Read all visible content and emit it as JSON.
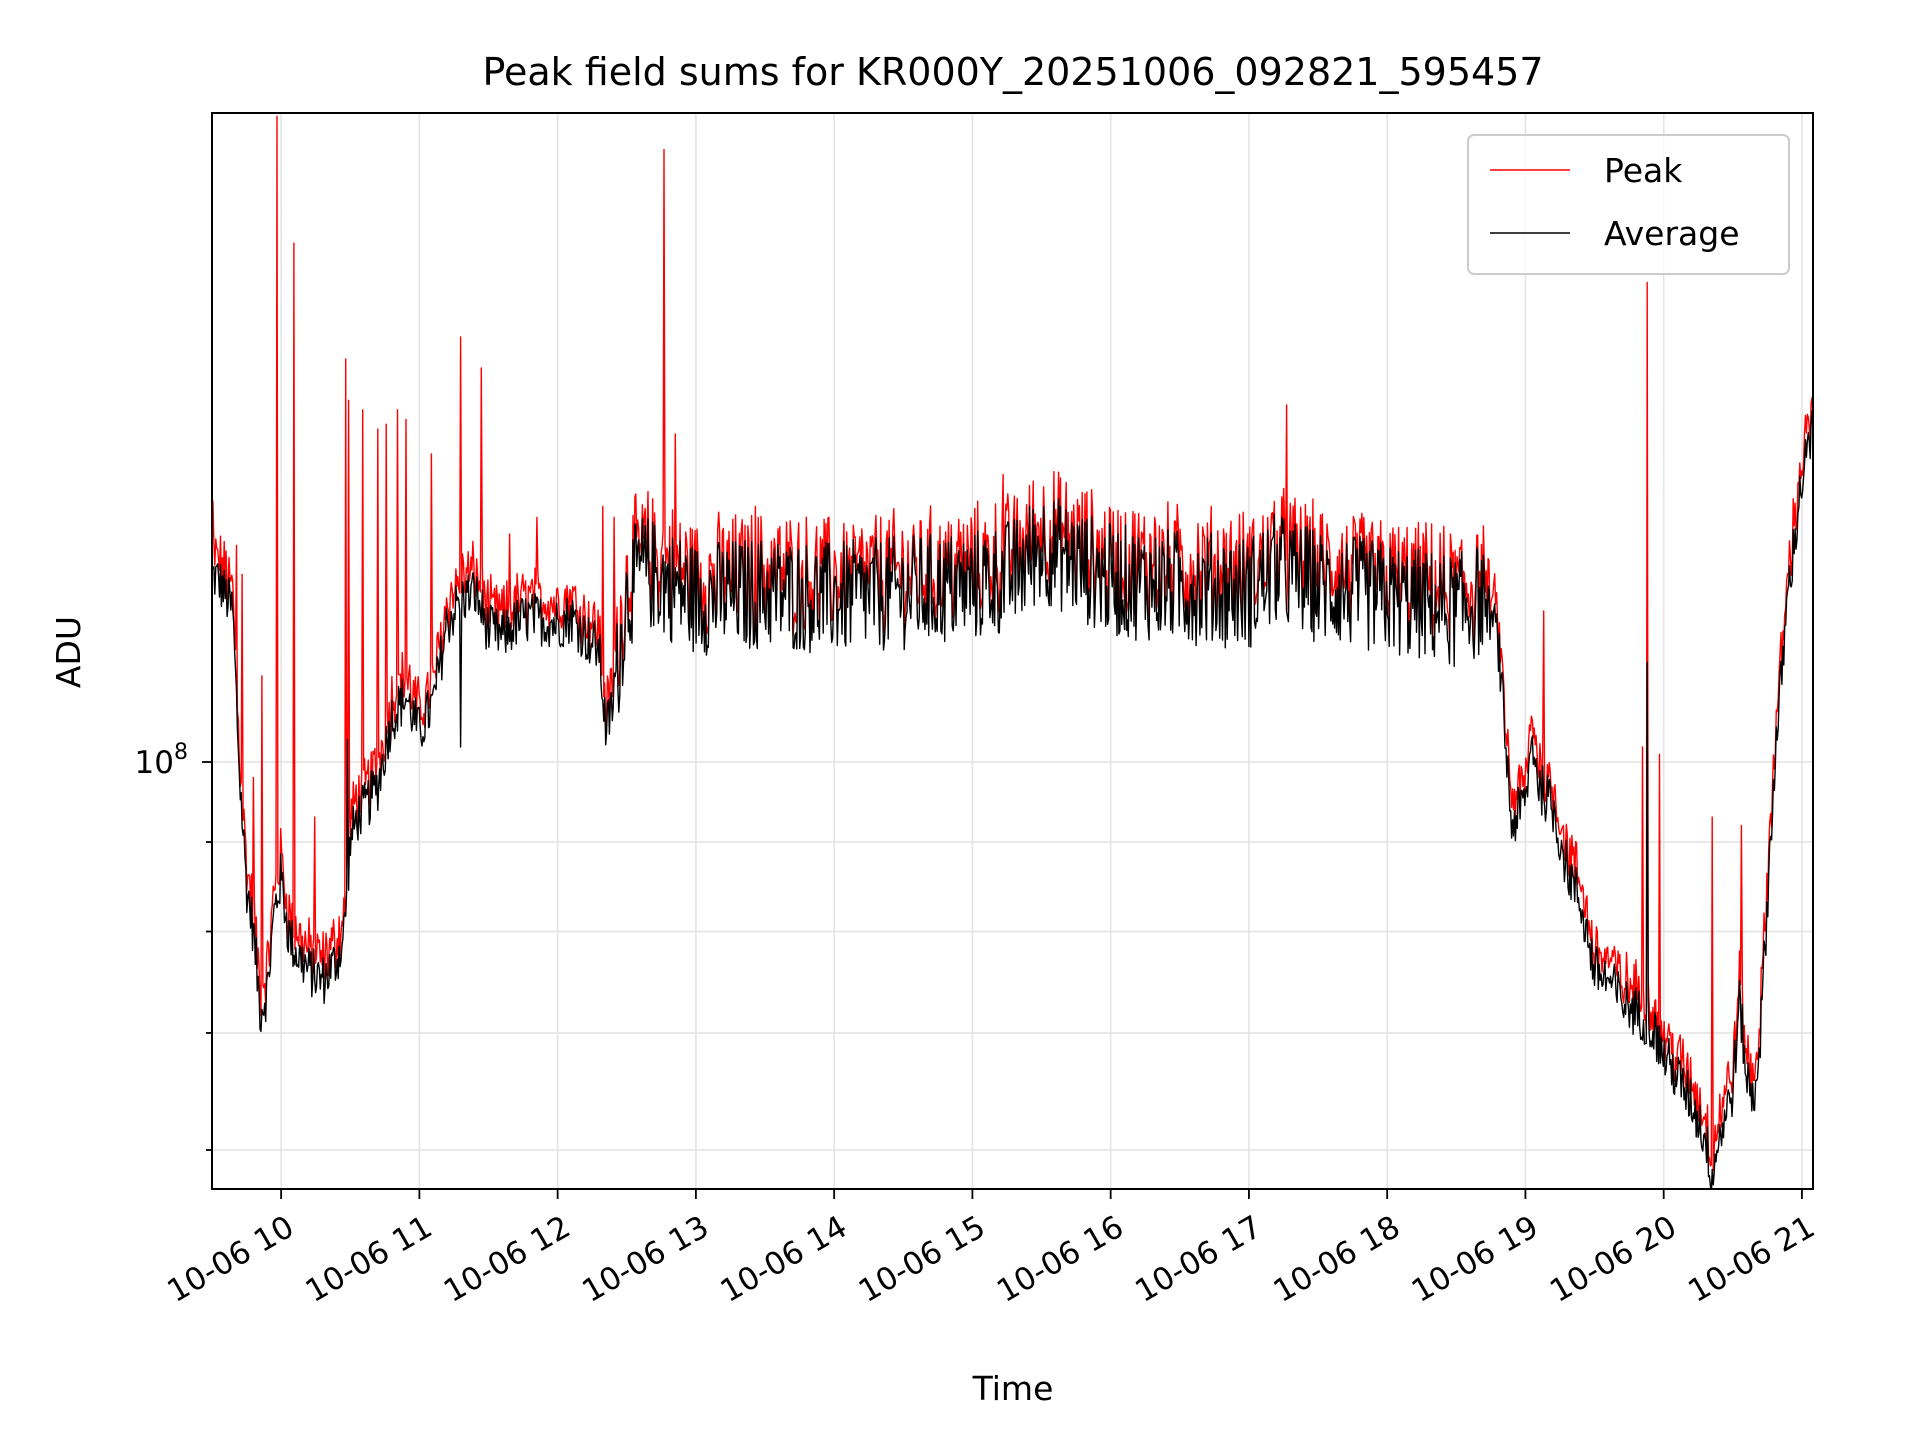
{
  "chart_data": {
    "type": "line",
    "title": "Peak field sums for KR000Y_20251006_092821_595457",
    "xlabel": "Time",
    "ylabel": "ADU",
    "yscale": "log",
    "xlim": [
      9.5,
      21.08
    ],
    "ylim": [
      57000000,
      235000000
    ],
    "grid": true,
    "legend_position": "upper right",
    "x_ticks": [
      {
        "value": 10,
        "label": "10-06 10"
      },
      {
        "value": 11,
        "label": "10-06 11"
      },
      {
        "value": 12,
        "label": "10-06 12"
      },
      {
        "value": 13,
        "label": "10-06 13"
      },
      {
        "value": 14,
        "label": "10-06 14"
      },
      {
        "value": 15,
        "label": "10-06 15"
      },
      {
        "value": 16,
        "label": "10-06 16"
      },
      {
        "value": 17,
        "label": "10-06 17"
      },
      {
        "value": 18,
        "label": "10-06 18"
      },
      {
        "value": 19,
        "label": "10-06 19"
      },
      {
        "value": 20,
        "label": "10-06 20"
      },
      {
        "value": 21,
        "label": "10-06 21"
      }
    ],
    "y_major_ticks": [
      {
        "value": 100000000,
        "base": "10",
        "exp": "8"
      }
    ],
    "y_minor_ticks": [
      60000000,
      70000000,
      80000000,
      90000000
    ],
    "baseline": {
      "x": [
        9.5,
        9.55,
        9.65,
        9.7,
        9.75,
        9.8,
        9.85,
        9.9,
        9.95,
        10.0,
        10.05,
        10.1,
        10.2,
        10.3,
        10.4,
        10.45,
        10.5,
        10.55,
        10.6,
        10.7,
        10.8,
        10.9,
        11.0,
        11.1,
        11.2,
        11.3,
        11.4,
        11.5,
        11.6,
        11.7,
        11.8,
        12.0,
        12.1,
        12.2,
        12.3,
        12.35,
        12.4,
        12.5,
        12.6,
        13.0,
        13.5,
        14.0,
        14.5,
        15.0,
        15.3,
        15.5,
        16.0,
        16.5,
        17.0,
        17.2,
        17.5,
        18.0,
        18.5,
        18.7,
        18.8,
        18.9,
        19.0,
        19.05,
        19.1,
        19.2,
        19.3,
        19.4,
        19.5,
        19.6,
        19.7,
        19.8,
        19.9,
        20.0,
        20.1,
        20.2,
        20.3,
        20.35,
        20.4,
        20.5,
        20.55,
        20.6,
        20.65,
        20.7,
        20.8,
        20.9,
        21.0,
        21.08
      ],
      "y": [
        128000000,
        127000000,
        122000000,
        98000000,
        85000000,
        80000000,
        72000000,
        74000000,
        82000000,
        86000000,
        80000000,
        78000000,
        76000000,
        75000000,
        77000000,
        79000000,
        90000000,
        93000000,
        94000000,
        97000000,
        106000000,
        109000000,
        104000000,
        108000000,
        120000000,
        124000000,
        125000000,
        119000000,
        118000000,
        120000000,
        121000000,
        120000000,
        121000000,
        118000000,
        116000000,
        104000000,
        108000000,
        124000000,
        129000000,
        124000000,
        125000000,
        124000000,
        125000000,
        126000000,
        128000000,
        133000000,
        127000000,
        126000000,
        125000000,
        129000000,
        126000000,
        124000000,
        122000000,
        124000000,
        118000000,
        92000000,
        95000000,
        103000000,
        97000000,
        94000000,
        87000000,
        83000000,
        76000000,
        75000000,
        73000000,
        72000000,
        71000000,
        68000000,
        66000000,
        64000000,
        61000000,
        58000000,
        61000000,
        65000000,
        73000000,
        66000000,
        64000000,
        70000000,
        99000000,
        125000000,
        145000000,
        155000000
      ]
    },
    "series": [
      {
        "name": "Peak",
        "color": "#ff0000",
        "spikes": [
          {
            "x": 9.51,
            "y": 141000000
          },
          {
            "x": 9.6,
            "y": 132000000
          },
          {
            "x": 9.68,
            "y": 133000000
          },
          {
            "x": 9.72,
            "y": 128000000
          },
          {
            "x": 9.8,
            "y": 98000000
          },
          {
            "x": 9.86,
            "y": 112000000
          },
          {
            "x": 9.97,
            "y": 234000000
          },
          {
            "x": 10.09,
            "y": 198000000
          },
          {
            "x": 10.24,
            "y": 93000000
          },
          {
            "x": 10.46,
            "y": 82000000
          },
          {
            "x": 10.47,
            "y": 170000000
          },
          {
            "x": 10.49,
            "y": 161000000
          },
          {
            "x": 10.59,
            "y": 159000000
          },
          {
            "x": 10.7,
            "y": 155000000
          },
          {
            "x": 10.76,
            "y": 156000000
          },
          {
            "x": 10.84,
            "y": 159000000
          },
          {
            "x": 10.9,
            "y": 157000000
          },
          {
            "x": 11.09,
            "y": 150000000
          },
          {
            "x": 11.3,
            "y": 175000000
          },
          {
            "x": 11.45,
            "y": 168000000
          },
          {
            "x": 11.65,
            "y": 135000000
          },
          {
            "x": 11.85,
            "y": 138000000
          },
          {
            "x": 12.13,
            "y": 126000000
          },
          {
            "x": 12.33,
            "y": 140000000
          },
          {
            "x": 12.41,
            "y": 138000000
          },
          {
            "x": 12.77,
            "y": 224000000
          },
          {
            "x": 12.85,
            "y": 154000000
          },
          {
            "x": 13.2,
            "y": 136000000
          },
          {
            "x": 13.43,
            "y": 140000000
          },
          {
            "x": 14.0,
            "y": 132000000
          },
          {
            "x": 15.22,
            "y": 146000000
          },
          {
            "x": 16.32,
            "y": 138000000
          },
          {
            "x": 17.27,
            "y": 160000000
          },
          {
            "x": 17.62,
            "y": 126000000
          },
          {
            "x": 19.13,
            "y": 122000000
          },
          {
            "x": 19.85,
            "y": 102000000
          },
          {
            "x": 19.88,
            "y": 188000000
          },
          {
            "x": 19.97,
            "y": 101000000
          },
          {
            "x": 20.35,
            "y": 93000000
          },
          {
            "x": 20.56,
            "y": 92000000
          }
        ]
      },
      {
        "name": "Average",
        "color": "#000000",
        "spikes": [
          {
            "x": 10.48,
            "y": 103000000
          },
          {
            "x": 11.3,
            "y": 102000000
          },
          {
            "x": 19.88,
            "y": 114000000
          }
        ]
      }
    ]
  }
}
